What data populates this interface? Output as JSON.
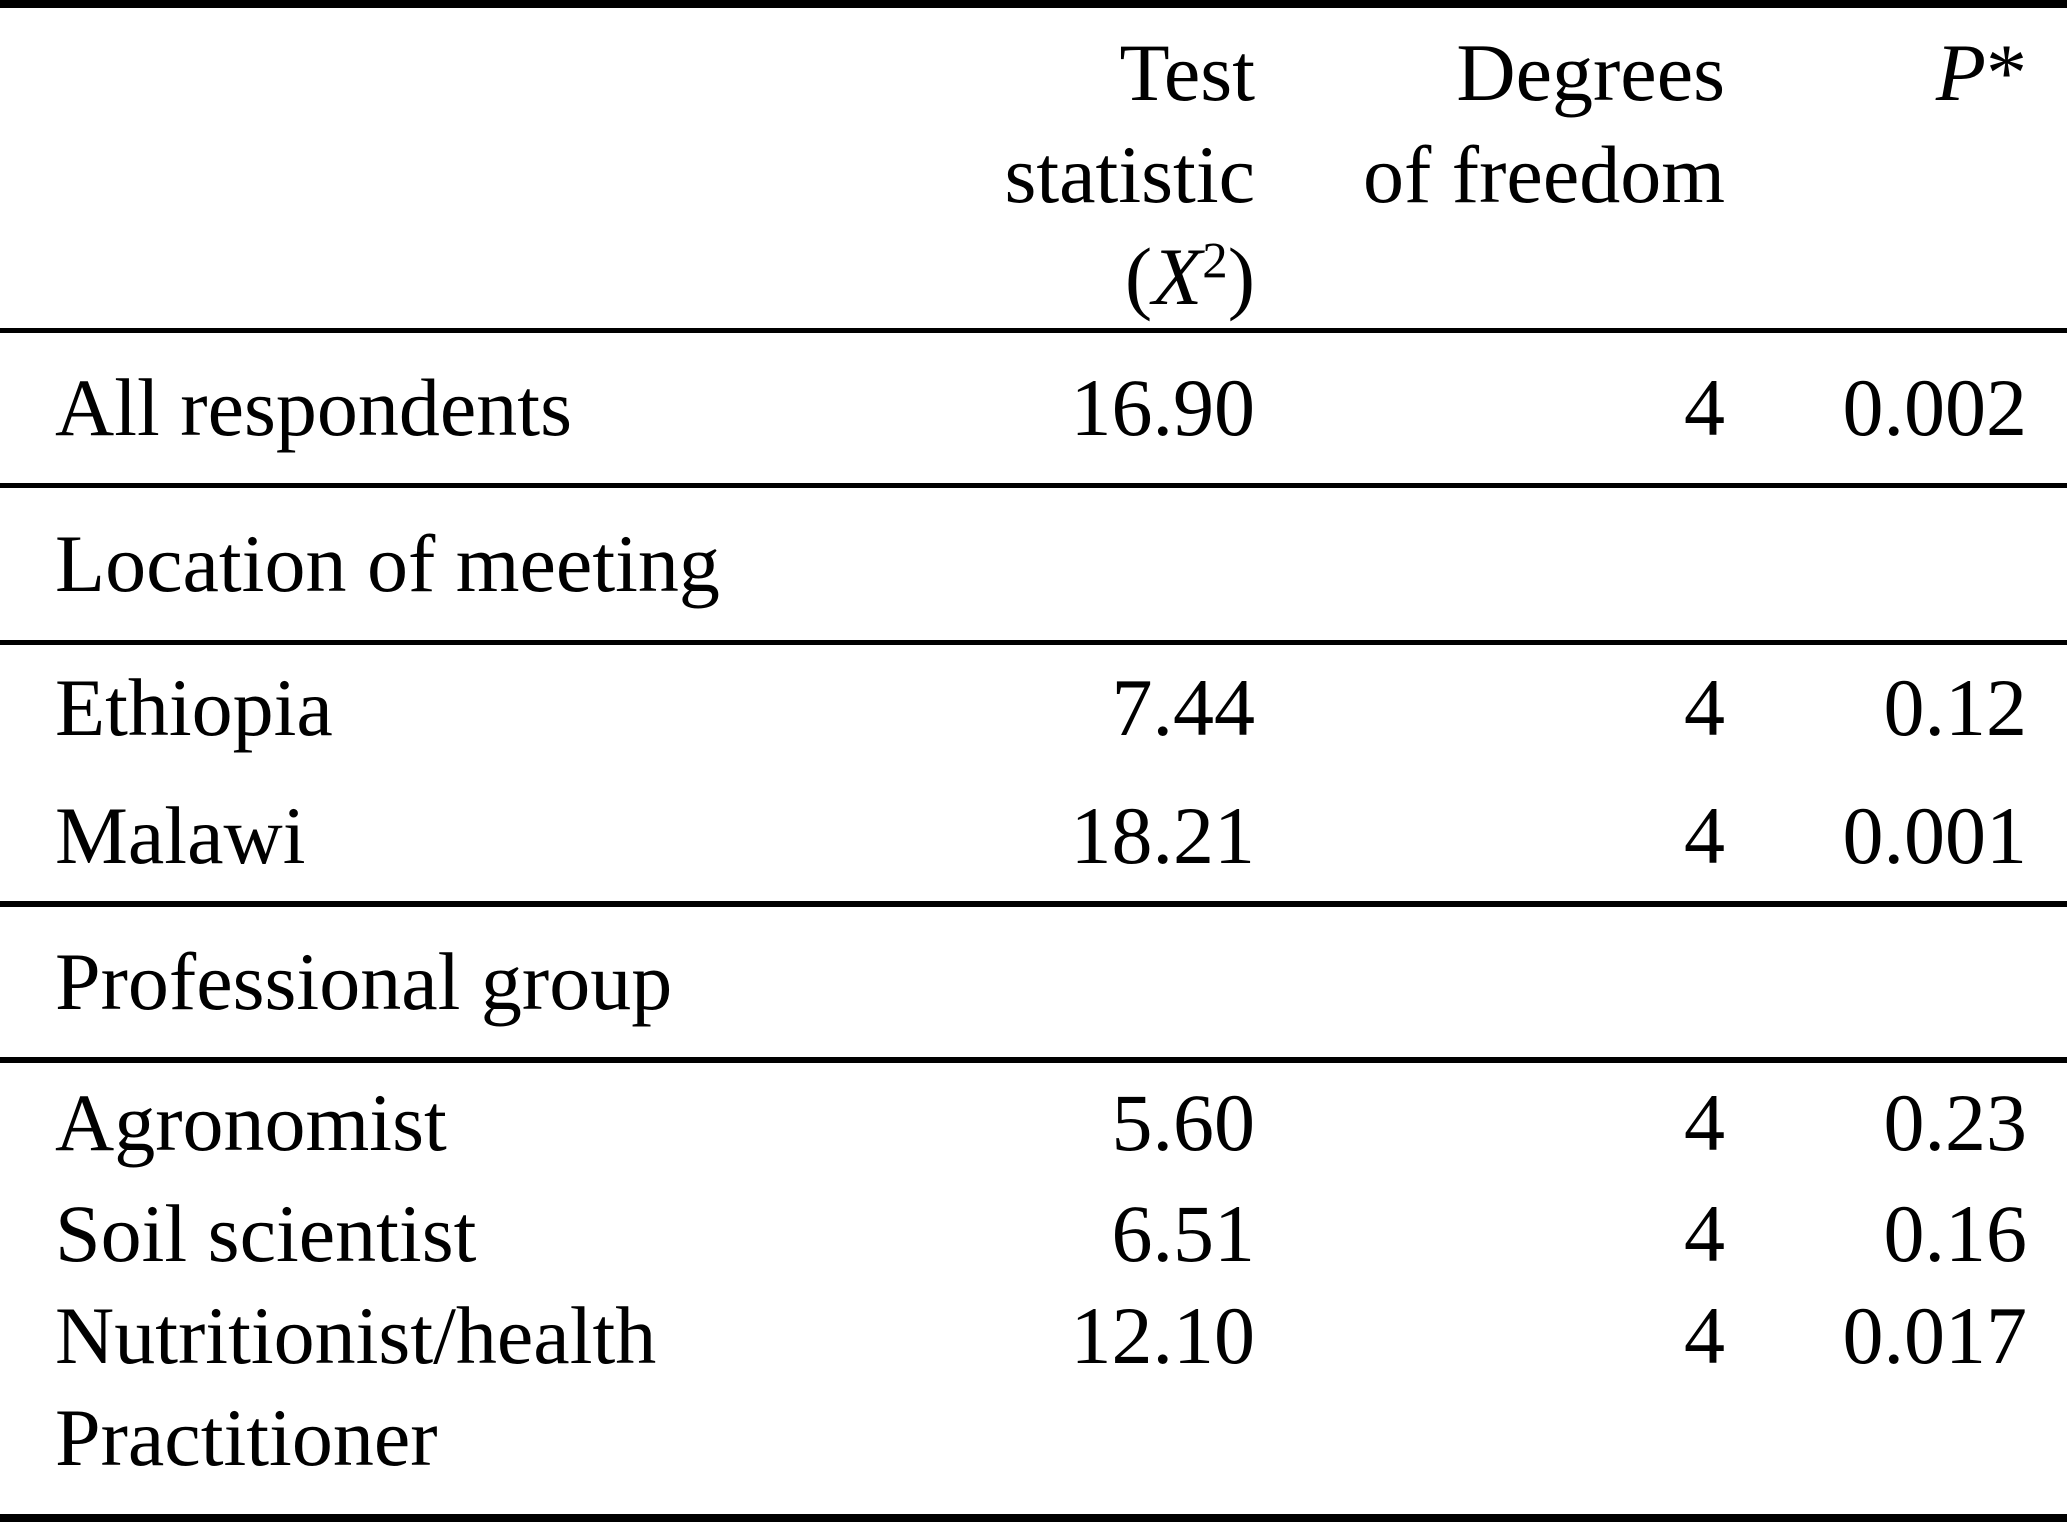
{
  "colors": {
    "text": "#000000",
    "background": "#ffffff",
    "rule": "#000000"
  },
  "table": {
    "header": {
      "col1": "",
      "test_statistic": {
        "line1": "Test statistic",
        "line2_open": "(",
        "line2_symbol": "X",
        "line2_superscript": "2",
        "line2_close": ")"
      },
      "degrees": {
        "line1": "Degrees",
        "line2": "of freedom"
      },
      "p": {
        "symbol": "P",
        "mark": "*"
      }
    },
    "sections": [
      {
        "title": "",
        "rows": [
          {
            "label": "All respondents",
            "stat": "16.90",
            "df": "4",
            "p": "0.002"
          }
        ]
      },
      {
        "title": "Location of meeting",
        "rows": [
          {
            "label": "Ethiopia",
            "stat": "7.44",
            "df": "4",
            "p": "0.12"
          },
          {
            "label": "Malawi",
            "stat": "18.21",
            "df": "4",
            "p": "0.001"
          }
        ]
      },
      {
        "title": "Professional group",
        "rows": [
          {
            "label": "Agronomist",
            "stat": "5.60",
            "df": "4",
            "p": "0.23"
          },
          {
            "label": "Soil scientist",
            "stat": "6.51",
            "df": "4",
            "p": "0.16"
          },
          {
            "label": "Nutritionist/health",
            "label_line2": "Practitioner",
            "stat": "12.10",
            "df": "4",
            "p": "0.017"
          }
        ]
      }
    ]
  },
  "chart_data": {
    "type": "table",
    "title": "",
    "columns": [
      "",
      "Test statistic (X2)",
      "Degrees of freedom",
      "P*"
    ],
    "rows": [
      [
        "All respondents",
        16.9,
        4,
        0.002
      ],
      [
        "Location of meeting",
        null,
        null,
        null
      ],
      [
        "Ethiopia",
        7.44,
        4,
        0.12
      ],
      [
        "Malawi",
        18.21,
        4,
        0.001
      ],
      [
        "Professional group",
        null,
        null,
        null
      ],
      [
        "Agronomist",
        5.6,
        4,
        0.23
      ],
      [
        "Soil scientist",
        6.51,
        4,
        0.16
      ],
      [
        "Nutritionist/health Practitioner",
        12.1,
        4,
        0.017
      ]
    ]
  }
}
